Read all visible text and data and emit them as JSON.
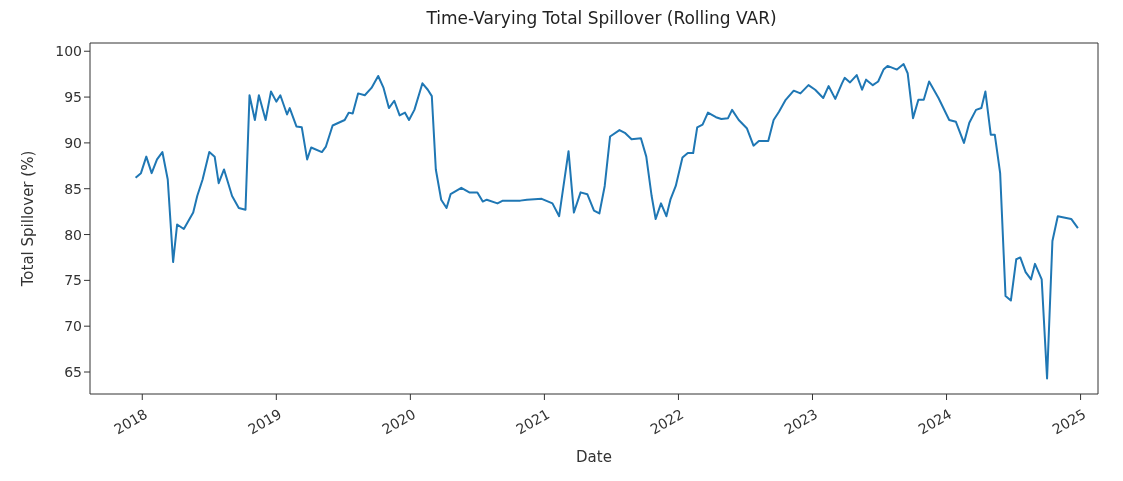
{
  "chart_data": {
    "type": "line",
    "title": "Time-Varying Total Spillover (Rolling VAR)",
    "xlabel": "Date",
    "ylabel": "Total Spillover (%)",
    "xlim": [
      2017.61,
      2025.13
    ],
    "xticks": [
      2018,
      2019,
      2020,
      2021,
      2022,
      2023,
      2024,
      2025
    ],
    "ylim": [
      62.6,
      100.9
    ],
    "yticks": [
      65,
      70,
      75,
      80,
      85,
      90,
      95,
      100
    ],
    "grid": false,
    "marker": "none",
    "line_style": "solid",
    "series": [
      {
        "color": "#1f77b4",
        "x": [
          2017.95,
          2017.99,
          2018.03,
          2018.07,
          2018.11,
          2018.15,
          2018.19,
          2018.23,
          2018.26,
          2018.31,
          2018.38,
          2018.41,
          2018.45,
          2018.5,
          2018.54,
          2018.57,
          2018.61,
          2018.67,
          2018.72,
          2018.77,
          2018.8,
          2018.84,
          2018.87,
          2018.92,
          2018.96,
          2019.0,
          2019.03,
          2019.08,
          2019.1,
          2019.15,
          2019.19,
          2019.23,
          2019.26,
          2019.34,
          2019.37,
          2019.42,
          2019.51,
          2019.54,
          2019.57,
          2019.61,
          2019.66,
          2019.71,
          2019.76,
          2019.8,
          2019.84,
          2019.88,
          2019.92,
          2019.96,
          2019.99,
          2020.03,
          2020.09,
          2020.13,
          2020.16,
          2020.19,
          2020.23,
          2020.27,
          2020.3,
          2020.38,
          2020.44,
          2020.5,
          2020.54,
          2020.57,
          2020.65,
          2020.69,
          2020.82,
          2020.87,
          2020.98,
          2021.06,
          2021.11,
          2021.18,
          2021.22,
          2021.27,
          2021.32,
          2021.37,
          2021.41,
          2021.45,
          2021.49,
          2021.56,
          2021.6,
          2021.65,
          2021.72,
          2021.76,
          2021.8,
          2021.83,
          2021.87,
          2021.91,
          2021.94,
          2021.98,
          2022.03,
          2022.07,
          2022.11,
          2022.14,
          2022.18,
          2022.22,
          2022.28,
          2022.32,
          2022.37,
          2022.4,
          2022.45,
          2022.51,
          2022.56,
          2022.6,
          2022.67,
          2022.71,
          2022.75,
          2022.8,
          2022.86,
          2022.91,
          2022.97,
          2023.02,
          2023.08,
          2023.12,
          2023.17,
          2023.22,
          2023.24,
          2023.28,
          2023.33,
          2023.37,
          2023.4,
          2023.45,
          2023.49,
          2023.53,
          2023.56,
          2023.63,
          2023.68,
          2023.71,
          2023.75,
          2023.79,
          2023.83,
          2023.87,
          2023.94,
          2024.02,
          2024.07,
          2024.13,
          2024.17,
          2024.22,
          2024.26,
          2024.29,
          2024.33,
          2024.36,
          2024.4,
          2024.44,
          2024.48,
          2024.52,
          2024.55,
          2024.59,
          2024.63,
          2024.66,
          2024.71,
          2024.75,
          2024.79,
          2024.83,
          2024.93,
          2024.98
        ],
        "values": [
          86.2,
          86.7,
          88.5,
          86.7,
          88.2,
          89.0,
          86.0,
          77.0,
          81.1,
          80.6,
          82.4,
          84.2,
          86.0,
          89.0,
          88.5,
          85.6,
          87.1,
          84.2,
          82.9,
          82.7,
          95.2,
          92.5,
          95.2,
          92.5,
          95.6,
          94.5,
          95.2,
          93.1,
          93.8,
          91.8,
          91.7,
          88.2,
          89.5,
          89.0,
          89.6,
          91.9,
          92.5,
          93.3,
          93.2,
          95.4,
          95.2,
          96.0,
          97.3,
          96.0,
          93.8,
          94.6,
          93.0,
          93.3,
          92.5,
          93.6,
          96.5,
          95.8,
          95.1,
          87.1,
          83.8,
          82.9,
          84.4,
          85.1,
          84.6,
          84.6,
          83.6,
          83.8,
          83.4,
          83.7,
          83.7,
          83.8,
          83.9,
          83.4,
          82.0,
          89.1,
          82.4,
          84.6,
          84.4,
          82.6,
          82.3,
          85.3,
          90.7,
          91.4,
          91.1,
          90.4,
          90.5,
          88.5,
          84.2,
          81.7,
          83.4,
          82.0,
          83.8,
          85.3,
          88.4,
          88.9,
          88.9,
          91.7,
          92.0,
          93.3,
          92.8,
          92.6,
          92.7,
          93.6,
          92.5,
          91.6,
          89.7,
          90.2,
          90.2,
          92.5,
          93.4,
          94.7,
          95.7,
          95.4,
          96.3,
          95.8,
          94.9,
          96.2,
          94.8,
          96.5,
          97.1,
          96.6,
          97.4,
          95.8,
          96.9,
          96.3,
          96.7,
          98.0,
          98.4,
          98.0,
          98.6,
          97.6,
          92.7,
          94.7,
          94.7,
          96.7,
          94.9,
          92.5,
          92.3,
          90.0,
          92.2,
          93.6,
          93.8,
          95.6,
          90.9,
          90.9,
          86.7,
          73.3,
          72.8,
          77.3,
          77.5,
          75.9,
          75.1,
          76.8,
          75.1,
          64.3,
          79.3,
          82.0,
          81.7,
          80.7
        ]
      }
    ]
  }
}
